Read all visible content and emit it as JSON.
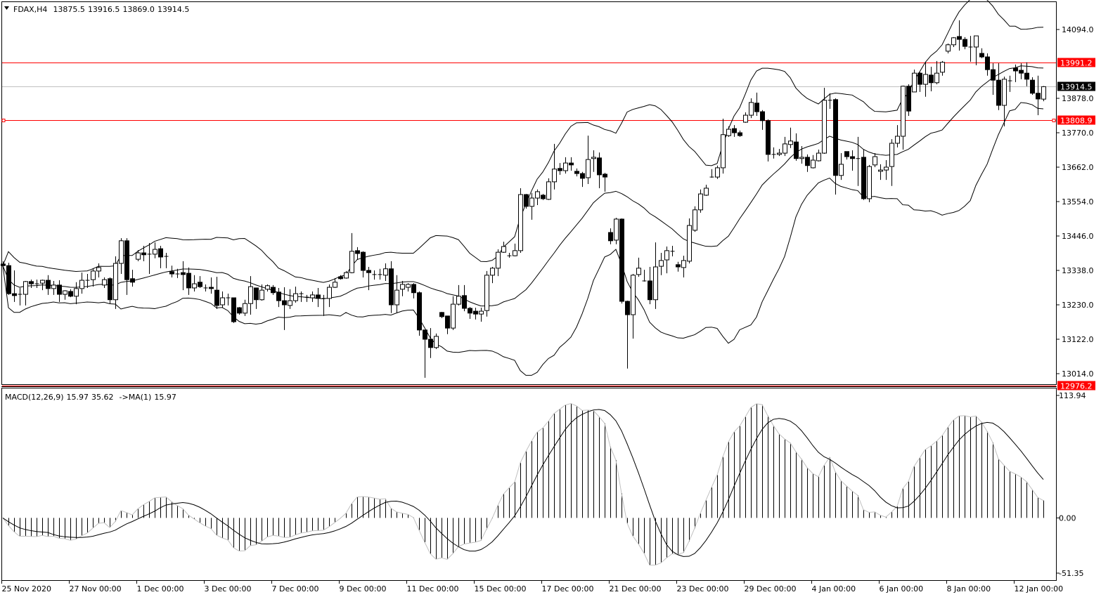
{
  "header": {
    "symbol": "FDAX,H4",
    "open": "13875.5",
    "high": "13916.5",
    "low": "13869.0",
    "close": "13914.5"
  },
  "indicator": {
    "label": "MACD(12,26,9)",
    "macd": "15.97",
    "signal": "35.62",
    "ma_label": "->MA(1)",
    "ma_value": "15.97"
  },
  "colors": {
    "up_fill": "#ffffff",
    "down_fill": "#000000",
    "level_line": "#ff0000",
    "price_line": "#c0c0c0",
    "current_label_bg": "#000000",
    "level_label_bg": "#ff0000"
  },
  "chart_data": {
    "type": "candlestick",
    "symbol": "FDAX",
    "timeframe": "H4",
    "price_axis": {
      "ticks": [
        "14094.0",
        "13878.0",
        "13770.0",
        "13662.0",
        "13554.0",
        "13446.0",
        "13338.0",
        "13230.0",
        "13122.0",
        "13014.0"
      ],
      "range": [
        12976.2,
        14190
      ]
    },
    "time_axis": {
      "labels": [
        "25 Nov 2020",
        "27 Nov 00:00",
        "1 Dec 00:00",
        "3 Dec 00:00",
        "7 Dec 00:00",
        "9 Dec 00:00",
        "11 Dec 00:00",
        "15 Dec 00:00",
        "17 Dec 00:00",
        "21 Dec 00:00",
        "23 Dec 00:00",
        "29 Dec 00:00",
        "4 Jan 00:00",
        "6 Jan 00:00",
        "8 Jan 00:00",
        "12 Jan 00:00"
      ]
    },
    "levels": [
      {
        "price": 13991.2,
        "label": "13991.2",
        "kind": "horizontal-line"
      },
      {
        "price": 13808.9,
        "label": "13808.9",
        "kind": "horizontal-line"
      },
      {
        "price": 12976.2,
        "label": "12976.2",
        "kind": "horizontal-line"
      }
    ],
    "current_price": {
      "price": 13914.5,
      "label": "13914.5"
    },
    "bollinger": {
      "period": 20,
      "deviation": 2
    },
    "macd": {
      "fast": 12,
      "slow": 26,
      "signal": 9,
      "axis_labels": [
        "113.94",
        "0.00",
        "-51.35"
      ],
      "range": [
        -51.35,
        113.94
      ]
    },
    "candles_ohlc": [
      [
        13358,
        13367,
        13349,
        13353
      ],
      [
        13353,
        13362,
        13261,
        13265
      ],
      [
        13265,
        13338,
        13239,
        13259
      ],
      [
        13261,
        13283,
        13228,
        13263
      ],
      [
        13263,
        13305,
        13228,
        13303
      ],
      [
        13303,
        13309,
        13283,
        13296
      ],
      [
        13296,
        13309,
        13283,
        13294
      ],
      [
        13298,
        13309,
        13276,
        13307
      ],
      [
        13307,
        13323,
        13261,
        13281
      ],
      [
        13281,
        13305,
        13261,
        13292
      ],
      [
        13292,
        13307,
        13239,
        13263
      ],
      [
        13263,
        13276,
        13246,
        13274
      ],
      [
        13272,
        13279,
        13254,
        13257
      ],
      [
        13257,
        13301,
        13232,
        13281
      ],
      [
        13281,
        13331,
        13265,
        13307
      ],
      [
        13307,
        13327,
        13283,
        13307
      ],
      [
        13309,
        13345,
        13287,
        13336
      ],
      [
        13336,
        13360,
        13316,
        13347
      ],
      [
        13292,
        13316,
        13283,
        13309
      ],
      [
        13312,
        13316,
        13234,
        13246
      ],
      [
        13246,
        13382,
        13217,
        13360
      ],
      [
        13360,
        13439,
        13327,
        13431
      ],
      [
        13431,
        13439,
        13261,
        13309
      ],
      [
        13312,
        13340,
        13287,
        13301
      ],
      [
        13373,
        13402,
        13367,
        13393
      ],
      [
        13393,
        13415,
        13367,
        13387
      ],
      [
        13389,
        13424,
        13327,
        13389
      ],
      [
        13389,
        13426,
        13376,
        13404
      ],
      [
        13406,
        13415,
        13345,
        13380
      ],
      [
        13382,
        13393,
        13345,
        13382
      ],
      [
        13334,
        13353,
        13316,
        13327
      ],
      [
        13327,
        13343,
        13314,
        13327
      ],
      [
        13331,
        13367,
        13276,
        13325
      ],
      [
        13329,
        13347,
        13261,
        13283
      ],
      [
        13283,
        13323,
        13272,
        13296
      ],
      [
        13301,
        13320,
        13283,
        13287
      ],
      [
        13283,
        13294,
        13272,
        13283
      ],
      [
        13285,
        13316,
        13265,
        13281
      ],
      [
        13276,
        13318,
        13217,
        13228
      ],
      [
        13230,
        13272,
        13221,
        13252
      ],
      [
        13252,
        13265,
        13228,
        13252
      ],
      [
        13252,
        13252,
        13173,
        13177
      ],
      [
        13221,
        13223,
        13199,
        13204
      ],
      [
        13204,
        13246,
        13195,
        13234
      ],
      [
        13234,
        13320,
        13199,
        13287
      ],
      [
        13283,
        13283,
        13217,
        13246
      ],
      [
        13246,
        13294,
        13243,
        13276
      ],
      [
        13279,
        13294,
        13272,
        13290
      ],
      [
        13285,
        13292,
        13261,
        13268
      ],
      [
        13270,
        13283,
        13223,
        13243
      ],
      [
        13243,
        13285,
        13151,
        13230
      ],
      [
        13228,
        13279,
        13217,
        13243
      ],
      [
        13243,
        13287,
        13237,
        13265
      ],
      [
        13265,
        13272,
        13239,
        13265
      ],
      [
        13254,
        13261,
        13239,
        13254
      ],
      [
        13252,
        13272,
        13239,
        13261
      ],
      [
        13261,
        13283,
        13223,
        13250
      ],
      [
        13250,
        13261,
        13195,
        13250
      ],
      [
        13250,
        13294,
        13223,
        13285
      ],
      [
        13285,
        13314,
        13283,
        13301
      ],
      [
        13318,
        13323,
        13309,
        13312
      ],
      [
        13314,
        13336,
        13312,
        13331
      ],
      [
        13331,
        13455,
        13329,
        13398
      ],
      [
        13400,
        13411,
        13371,
        13391
      ],
      [
        13395,
        13398,
        13316,
        13338
      ],
      [
        13338,
        13349,
        13276,
        13331
      ],
      [
        13325,
        13338,
        13309,
        13325
      ],
      [
        13325,
        13343,
        13309,
        13325
      ],
      [
        13323,
        13360,
        13305,
        13343
      ],
      [
        13343,
        13367,
        13204,
        13230
      ],
      [
        13230,
        13323,
        13204,
        13276
      ],
      [
        13279,
        13305,
        13257,
        13294
      ],
      [
        13285,
        13298,
        13272,
        13294
      ],
      [
        13294,
        13298,
        13250,
        13268
      ],
      [
        13268,
        13272,
        13133,
        13151
      ],
      [
        13151,
        13151,
        13001,
        13122
      ],
      [
        13122,
        13157,
        13063,
        13096
      ],
      [
        13096,
        13140,
        13091,
        13131
      ],
      [
        13206,
        13208,
        13188,
        13193
      ],
      [
        13195,
        13195,
        13138,
        13157
      ],
      [
        13157,
        13257,
        13151,
        13232
      ],
      [
        13232,
        13292,
        13228,
        13257
      ],
      [
        13259,
        13292,
        13210,
        13219
      ],
      [
        13219,
        13223,
        13186,
        13204
      ],
      [
        13210,
        13221,
        13184,
        13201
      ],
      [
        13201,
        13221,
        13177,
        13210
      ],
      [
        13212,
        13336,
        13193,
        13323
      ],
      [
        13323,
        13349,
        13298,
        13345
      ],
      [
        13345,
        13404,
        13320,
        13395
      ],
      [
        13395,
        13428,
        13393,
        13413
      ],
      [
        13384,
        13393,
        13378,
        13384
      ],
      [
        13384,
        13422,
        13382,
        13400
      ],
      [
        13400,
        13596,
        13393,
        13576
      ],
      [
        13576,
        13578,
        13532,
        13539
      ],
      [
        13539,
        13581,
        13497,
        13565
      ],
      [
        13565,
        13592,
        13543,
        13585
      ],
      [
        13574,
        13578,
        13559,
        13563
      ],
      [
        13561,
        13627,
        13559,
        13616
      ],
      [
        13616,
        13735,
        13592,
        13656
      ],
      [
        13658,
        13675,
        13638,
        13651
      ],
      [
        13651,
        13693,
        13642,
        13675
      ],
      [
        13675,
        13693,
        13651,
        13669
      ],
      [
        13649,
        13658,
        13633,
        13642
      ],
      [
        13642,
        13647,
        13600,
        13627
      ],
      [
        13629,
        13761,
        13609,
        13686
      ],
      [
        13689,
        13715,
        13647,
        13693
      ],
      [
        13691,
        13708,
        13596,
        13638
      ],
      [
        13640,
        13644,
        13585,
        13631
      ],
      [
        13457,
        13470,
        13420,
        13431
      ],
      [
        13433,
        13503,
        13420,
        13499
      ],
      [
        13499,
        13501,
        13234,
        13241
      ],
      [
        13241,
        13243,
        13030,
        13199
      ],
      [
        13199,
        13327,
        13124,
        13323
      ],
      [
        13325,
        13378,
        13318,
        13345
      ],
      [
        13305,
        13340,
        13303,
        13305
      ],
      [
        13305,
        13349,
        13232,
        13246
      ],
      [
        13246,
        13426,
        13217,
        13349
      ],
      [
        13351,
        13393,
        13323,
        13369
      ],
      [
        13371,
        13413,
        13329,
        13400
      ],
      [
        13398,
        13415,
        13382,
        13398
      ],
      [
        13356,
        13365,
        13334,
        13349
      ],
      [
        13347,
        13384,
        13316,
        13369
      ],
      [
        13367,
        13501,
        13360,
        13479
      ],
      [
        13464,
        13539,
        13459,
        13528
      ],
      [
        13528,
        13592,
        13519,
        13578
      ],
      [
        13574,
        13607,
        13572,
        13596
      ],
      [
        13631,
        13656,
        13629,
        13631
      ],
      [
        13631,
        13667,
        13625,
        13660
      ],
      [
        13660,
        13814,
        13642,
        13764
      ],
      [
        13761,
        13790,
        13757,
        13781
      ],
      [
        13783,
        13794,
        13757,
        13770
      ],
      [
        13770,
        13777,
        13757,
        13761
      ],
      [
        13803,
        13834,
        13801,
        13825
      ],
      [
        13825,
        13878,
        13816,
        13865
      ],
      [
        13863,
        13896,
        13823,
        13836
      ],
      [
        13836,
        13841,
        13779,
        13808
      ],
      [
        13808,
        13812,
        13680,
        13702
      ],
      [
        13702,
        13724,
        13689,
        13702
      ],
      [
        13702,
        13719,
        13697,
        13706
      ],
      [
        13706,
        13757,
        13697,
        13735
      ],
      [
        13733,
        13786,
        13722,
        13744
      ],
      [
        13741,
        13768,
        13682,
        13689
      ],
      [
        13689,
        13728,
        13673,
        13693
      ],
      [
        13693,
        13702,
        13647,
        13667
      ],
      [
        13660,
        13700,
        13658,
        13684
      ],
      [
        13682,
        13717,
        13680,
        13706
      ],
      [
        13706,
        13911,
        13704,
        13872
      ],
      [
        13872,
        13894,
        13845,
        13872
      ],
      [
        13874,
        13878,
        13576,
        13636
      ],
      [
        13636,
        13706,
        13622,
        13671
      ],
      [
        13711,
        13711,
        13686,
        13695
      ],
      [
        13695,
        13715,
        13651,
        13689
      ],
      [
        13689,
        13757,
        13603,
        13689
      ],
      [
        13693,
        13717,
        13559,
        13563
      ],
      [
        13563,
        13669,
        13552,
        13664
      ],
      [
        13669,
        13706,
        13662,
        13695
      ],
      [
        13649,
        13671,
        13622,
        13653
      ],
      [
        13653,
        13684,
        13622,
        13662
      ],
      [
        13664,
        13750,
        13603,
        13737
      ],
      [
        13737,
        13794,
        13724,
        13759
      ],
      [
        13759,
        13918,
        13717,
        13916
      ],
      [
        13916,
        13922,
        13823,
        13838
      ],
      [
        13898,
        13968,
        13898,
        13957
      ],
      [
        13957,
        13960,
        13898,
        13922
      ],
      [
        13922,
        13993,
        13883,
        13953
      ],
      [
        13951,
        13977,
        13900,
        13927
      ],
      [
        13927,
        13995,
        13922,
        13957
      ],
      [
        13960,
        13995,
        13949,
        13991
      ],
      [
        14026,
        14050,
        14019,
        14046
      ],
      [
        14046,
        14070,
        14039,
        14068
      ],
      [
        14072,
        14123,
        14028,
        14063
      ],
      [
        14063,
        14070,
        14032,
        14041
      ],
      [
        14039,
        14074,
        13993,
        14039
      ],
      [
        14039,
        14074,
        13982,
        14074
      ],
      [
        14019,
        14035,
        14004,
        14008
      ],
      [
        14008,
        14019,
        13949,
        13968
      ],
      [
        13968,
        13988,
        13889,
        13935
      ],
      [
        13935,
        13988,
        13841,
        13856
      ],
      [
        13856,
        13946,
        13790,
        13938
      ],
      [
        13933,
        13949,
        13898,
        13933
      ],
      [
        13973,
        13984,
        13929,
        13964
      ],
      [
        13966,
        13988,
        13938,
        13957
      ],
      [
        13957,
        13991,
        13916,
        13938
      ],
      [
        13935,
        13944,
        13889,
        13894
      ],
      [
        13894,
        13949,
        13825,
        13876
      ],
      [
        13875.5,
        13916.5,
        13869.0,
        13914.5
      ]
    ]
  }
}
